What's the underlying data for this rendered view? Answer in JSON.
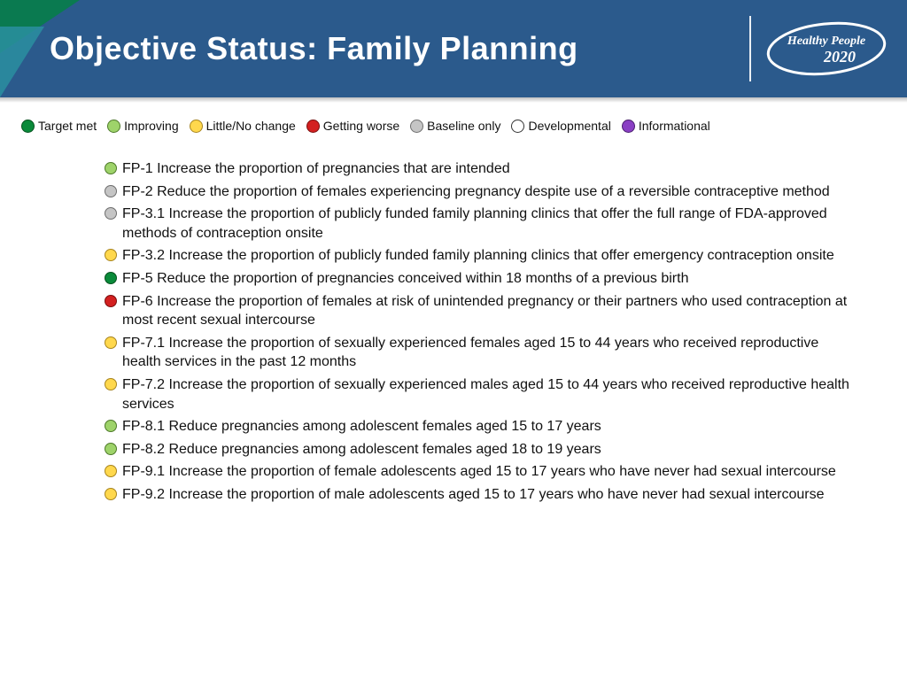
{
  "header": {
    "title": "Objective Status: Family Planning",
    "bg_color": "#2b5a8c",
    "logo_line1": "Healthy People",
    "logo_line2": "2020"
  },
  "status_colors": {
    "target_met": {
      "fill": "#0a8a3a",
      "stroke": "#06521f"
    },
    "improving": {
      "fill": "#9ed36a",
      "stroke": "#4e7a2a"
    },
    "little_change": {
      "fill": "#ffd84d",
      "stroke": "#a8851f"
    },
    "getting_worse": {
      "fill": "#d32020",
      "stroke": "#7a0f0f"
    },
    "baseline_only": {
      "fill": "#c5c5c5",
      "stroke": "#6e6e6e"
    },
    "developmental": {
      "fill": "#ffffff",
      "stroke": "#333333"
    },
    "informational": {
      "fill": "#8a3fc4",
      "stroke": "#4a1f6e"
    }
  },
  "legend": [
    {
      "key": "target_met",
      "label": "Target met"
    },
    {
      "key": "improving",
      "label": "Improving"
    },
    {
      "key": "little_change",
      "label": "Little/No change"
    },
    {
      "key": "getting_worse",
      "label": "Getting worse"
    },
    {
      "key": "baseline_only",
      "label": "Baseline only"
    },
    {
      "key": "developmental",
      "label": "Developmental"
    },
    {
      "key": "informational",
      "label": "Informational"
    }
  ],
  "objectives": [
    {
      "status": "improving",
      "text": "FP-1 Increase the proportion of pregnancies that are intended"
    },
    {
      "status": "baseline_only",
      "text": "FP-2 Reduce the proportion of females experiencing pregnancy despite use of a reversible contraceptive method"
    },
    {
      "status": "baseline_only",
      "text": "FP-3.1 Increase the proportion of publicly funded family planning clinics that offer the full range of FDA-approved methods of contraception onsite"
    },
    {
      "status": "little_change",
      "text": "FP-3.2 Increase the proportion of publicly funded family planning clinics that offer emergency contraception onsite"
    },
    {
      "status": "target_met",
      "text": "FP-5 Reduce the proportion of pregnancies conceived within 18 months of a previous birth"
    },
    {
      "status": "getting_worse",
      "text": "FP-6 Increase the proportion of females at risk of unintended pregnancy or their partners who used contraception at most recent sexual intercourse"
    },
    {
      "status": "little_change",
      "text": "FP-7.1 Increase the proportion of sexually experienced females aged 15 to 44 years who received reproductive health services in the past 12 months"
    },
    {
      "status": "little_change",
      "text": "FP-7.2 Increase the proportion of sexually experienced males aged 15 to 44 years who received reproductive health services"
    },
    {
      "status": "improving",
      "text": "FP-8.1 Reduce pregnancies among adolescent females aged 15 to 17 years"
    },
    {
      "status": "improving",
      "text": "FP-8.2 Reduce pregnancies among adolescent females aged 18 to 19 years"
    },
    {
      "status": "little_change",
      "text": "FP-9.1 Increase the proportion of female adolescents aged 15 to 17 years who have never had sexual intercourse"
    },
    {
      "status": "little_change",
      "text": "FP-9.2 Increase the proportion of male adolescents aged 15 to 17 years who have never had sexual intercourse"
    }
  ]
}
